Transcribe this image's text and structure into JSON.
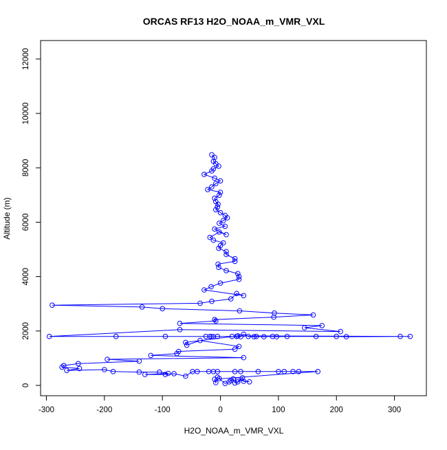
{
  "chart_data": {
    "type": "line",
    "title": "ORCAS RF13 H2O_NOAA_m_VMR_VXL",
    "xlabel": "H2O_NOAA_m_VMR_VXL",
    "ylabel": "Altitude (m)",
    "xlim": [
      -310,
      355
    ],
    "ylim": [
      -380,
      12680
    ],
    "xticks": [
      -300,
      -200,
      -100,
      0,
      100,
      200,
      300
    ],
    "yticks": [
      0,
      2000,
      4000,
      6000,
      8000,
      10000,
      12000
    ],
    "grid": false,
    "legend": "none",
    "series": [
      {
        "color": "#0000ff",
        "markers": "open-circle",
        "points": [
          [
            -15,
            8480
          ],
          [
            -10,
            8380
          ],
          [
            -12,
            8240
          ],
          [
            -8,
            8150
          ],
          [
            -3,
            8060
          ],
          [
            -12,
            7960
          ],
          [
            -15,
            7880
          ],
          [
            -28,
            7760
          ],
          [
            -10,
            7620
          ],
          [
            0,
            7520
          ],
          [
            -8,
            7420
          ],
          [
            -15,
            7300
          ],
          [
            -22,
            7200
          ],
          [
            0,
            7100
          ],
          [
            -2,
            6990
          ],
          [
            -10,
            6880
          ],
          [
            -8,
            6760
          ],
          [
            -4,
            6660
          ],
          [
            -5,
            6560
          ],
          [
            -8,
            6460
          ],
          [
            0,
            6350
          ],
          [
            8,
            6250
          ],
          [
            12,
            6160
          ],
          [
            5,
            6060
          ],
          [
            -2,
            5960
          ],
          [
            8,
            5850
          ],
          [
            -10,
            5750
          ],
          [
            10,
            5540
          ],
          [
            -2,
            5640
          ],
          [
            -18,
            5440
          ],
          [
            -12,
            5340
          ],
          [
            5,
            5240
          ],
          [
            0,
            5140
          ],
          [
            -3,
            5040
          ],
          [
            10,
            4920
          ],
          [
            10,
            4810
          ],
          [
            25,
            4660
          ],
          [
            25,
            4560
          ],
          [
            -4,
            4460
          ],
          [
            -3,
            4340
          ],
          [
            10,
            4220
          ],
          [
            30,
            4110
          ],
          [
            32,
            4000
          ],
          [
            32,
            3900
          ],
          [
            0,
            3760
          ],
          [
            -16,
            3630
          ],
          [
            -28,
            3510
          ],
          [
            40,
            3300
          ],
          [
            28,
            3380
          ],
          [
            18,
            3180
          ],
          [
            -15,
            3090
          ],
          [
            -35,
            3020
          ],
          [
            -290,
            2950
          ],
          [
            -135,
            2880
          ],
          [
            -100,
            2820
          ],
          [
            33,
            2740
          ],
          [
            93,
            2660
          ],
          [
            160,
            2590
          ],
          [
            92,
            2510
          ],
          [
            -10,
            2420
          ],
          [
            -8,
            2370
          ],
          [
            -70,
            2280
          ],
          [
            175,
            2200
          ],
          [
            145,
            2120
          ],
          [
            207,
            1980
          ],
          [
            -70,
            2050
          ],
          [
            -295,
            1800
          ],
          [
            -180,
            1800
          ],
          [
            -95,
            1800
          ],
          [
            -25,
            1800
          ],
          [
            -18,
            1800
          ],
          [
            -15,
            1790
          ],
          [
            -12,
            1790
          ],
          [
            -5,
            1800
          ],
          [
            20,
            1800
          ],
          [
            28,
            1800
          ],
          [
            35,
            1790
          ],
          [
            40,
            1880
          ],
          [
            48,
            1800
          ],
          [
            58,
            1790
          ],
          [
            62,
            1800
          ],
          [
            75,
            1790
          ],
          [
            90,
            1800
          ],
          [
            97,
            1790
          ],
          [
            115,
            1800
          ],
          [
            165,
            1800
          ],
          [
            200,
            1800
          ],
          [
            217,
            1790
          ],
          [
            310,
            1800
          ],
          [
            327,
            1800
          ],
          [
            30,
            1820
          ],
          [
            -60,
            1580
          ],
          [
            -58,
            1480
          ],
          [
            -35,
            1650
          ],
          [
            32,
            1430
          ],
          [
            25,
            1330
          ],
          [
            -72,
            1250
          ],
          [
            -75,
            1170
          ],
          [
            -120,
            1100
          ],
          [
            40,
            1020
          ],
          [
            -195,
            960
          ],
          [
            -140,
            890
          ],
          [
            -245,
            800
          ],
          [
            -270,
            730
          ],
          [
            -273,
            670
          ],
          [
            -243,
            620
          ],
          [
            -265,
            550
          ],
          [
            -200,
            580
          ],
          [
            -185,
            510
          ],
          [
            -140,
            490
          ],
          [
            -105,
            490
          ],
          [
            -90,
            440
          ],
          [
            -130,
            400
          ],
          [
            -95,
            400
          ],
          [
            -80,
            430
          ],
          [
            -60,
            340
          ],
          [
            -48,
            510
          ],
          [
            -40,
            510
          ],
          [
            -20,
            510
          ],
          [
            -12,
            510
          ],
          [
            -5,
            510
          ],
          [
            25,
            510
          ],
          [
            35,
            510
          ],
          [
            65,
            510
          ],
          [
            100,
            510
          ],
          [
            110,
            510
          ],
          [
            125,
            510
          ],
          [
            135,
            510
          ],
          [
            168,
            510
          ],
          [
            -10,
            230
          ],
          [
            -8,
            100
          ],
          [
            -5,
            300
          ],
          [
            -2,
            250
          ],
          [
            8,
            70
          ],
          [
            15,
            130
          ],
          [
            18,
            180
          ],
          [
            22,
            240
          ],
          [
            25,
            90
          ],
          [
            30,
            130
          ],
          [
            38,
            280
          ],
          [
            40,
            150
          ],
          [
            50,
            130
          ],
          [
            30,
            200
          ]
        ]
      }
    ]
  }
}
